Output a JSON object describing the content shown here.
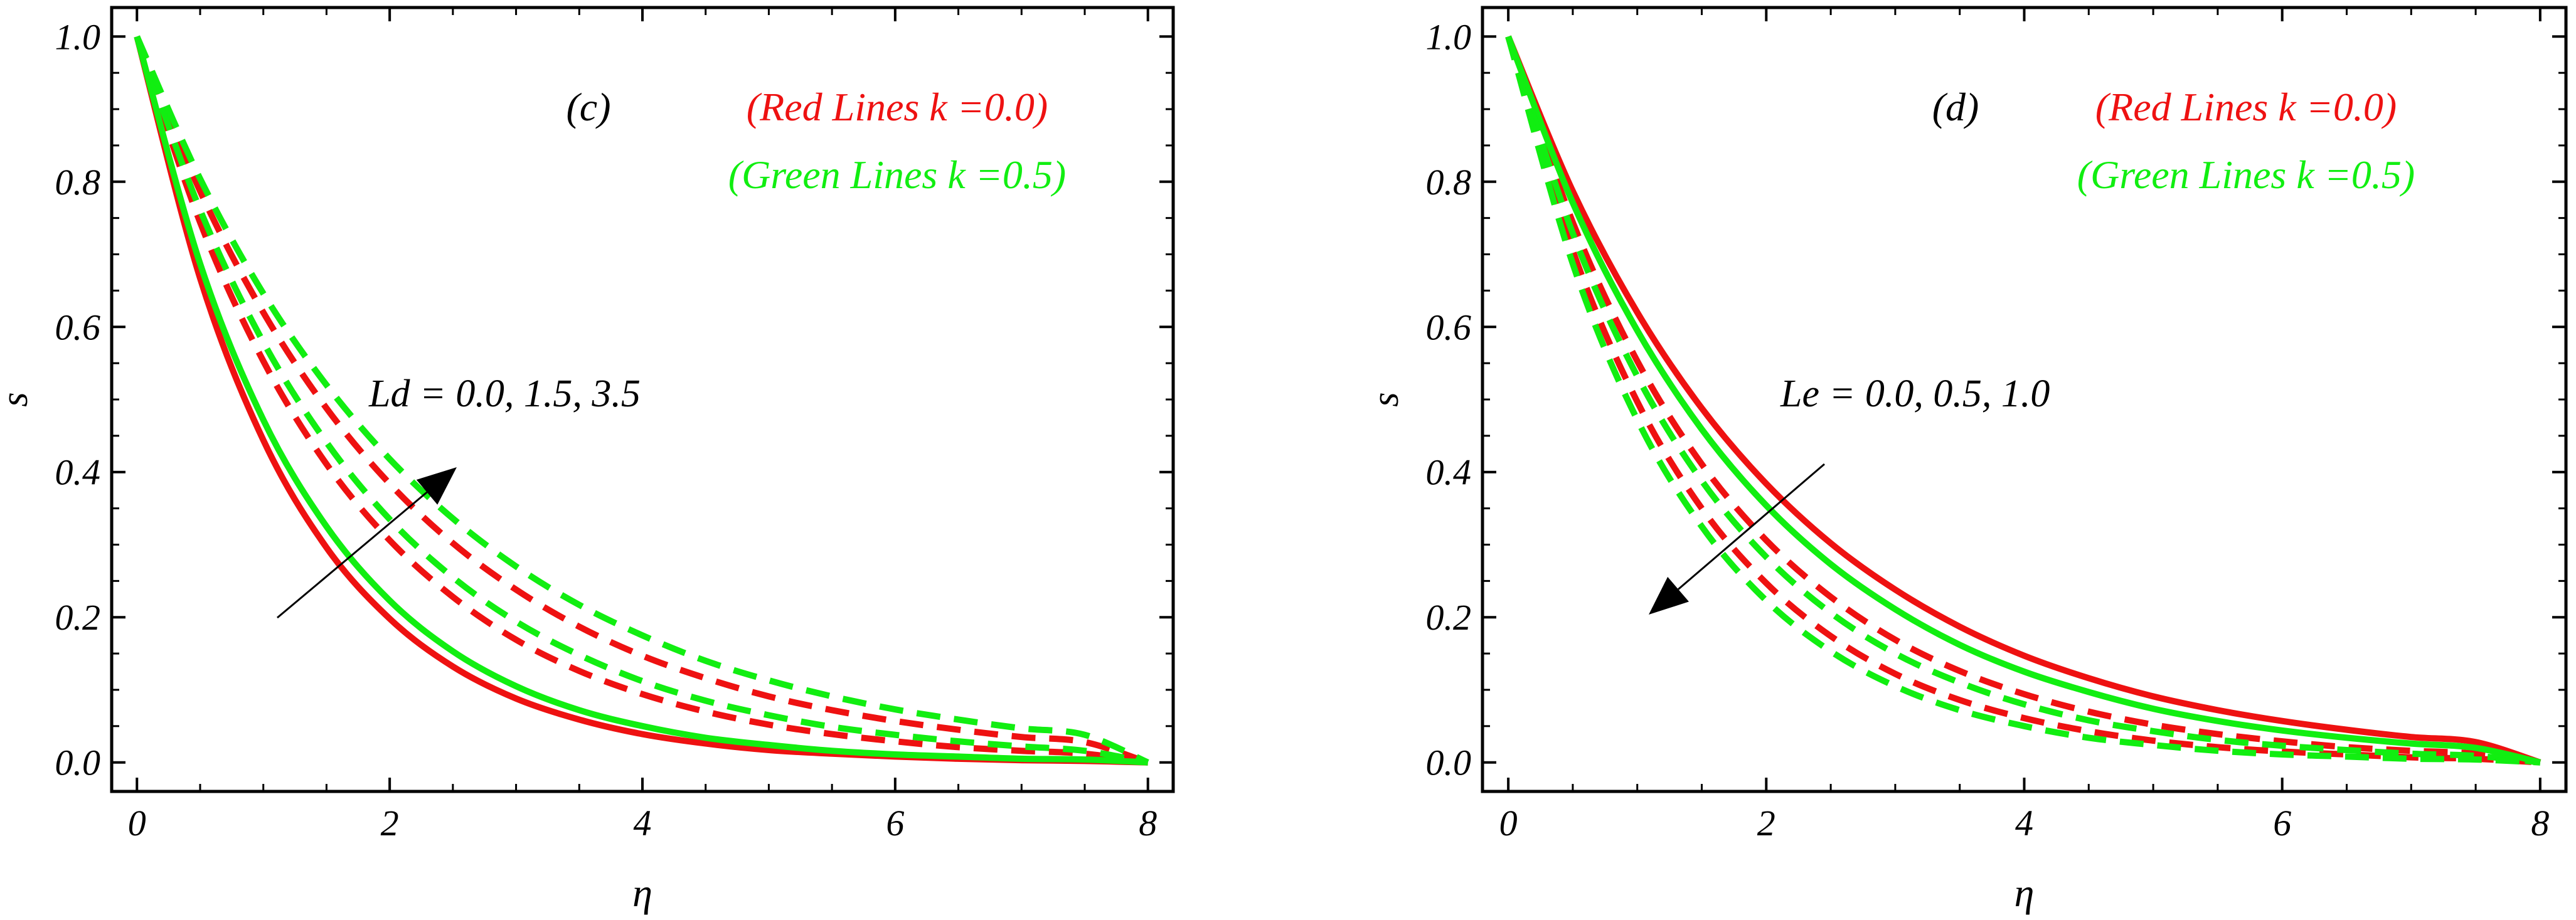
{
  "chart_data": [
    {
      "type": "line",
      "panel_label": "(c)",
      "xlabel": "η",
      "ylabel": "s",
      "xlim": [
        -0.2,
        8.2
      ],
      "ylim": [
        -0.04,
        1.04
      ],
      "xticks": [
        "0",
        "2",
        "4",
        "6",
        "8"
      ],
      "xtick_values": [
        0,
        2,
        4,
        6,
        8
      ],
      "yticks": [
        "0.0",
        "0.2",
        "0.4",
        "0.6",
        "0.8",
        "1.0"
      ],
      "ytick_values": [
        0.0,
        0.2,
        0.4,
        0.6,
        0.8,
        1.0
      ],
      "legend": [
        {
          "text": "(Red Lines k =0.0)",
          "color": "#ee1111"
        },
        {
          "text": "(Green Lines k =0.5)",
          "color": "#11ee11"
        }
      ],
      "annotation": "Ld = 0.0, 1.5, 3.5",
      "arrow_direction": "up-right",
      "x": [
        0,
        0.5,
        1,
        1.5,
        2,
        2.5,
        3,
        3.5,
        4,
        4.5,
        5,
        5.5,
        6,
        6.5,
        7,
        7.5,
        8
      ],
      "series": [
        {
          "color": "#ee1111",
          "style": "solid",
          "values": [
            1.0,
            0.667,
            0.444,
            0.296,
            0.198,
            0.132,
            0.088,
            0.059,
            0.039,
            0.026,
            0.017,
            0.012,
            0.008,
            0.005,
            0.003,
            0.002,
            0.0
          ]
        },
        {
          "color": "#ee1111",
          "style": "dashed",
          "values": [
            1.0,
            0.744,
            0.553,
            0.411,
            0.306,
            0.228,
            0.169,
            0.126,
            0.094,
            0.07,
            0.052,
            0.039,
            0.029,
            0.021,
            0.016,
            0.012,
            0.0
          ]
        },
        {
          "color": "#ee1111",
          "style": "dashed",
          "values": [
            1.0,
            0.787,
            0.62,
            0.488,
            0.384,
            0.302,
            0.238,
            0.187,
            0.147,
            0.116,
            0.091,
            0.072,
            0.057,
            0.045,
            0.035,
            0.028,
            0.0
          ]
        },
        {
          "color": "#11ee11",
          "style": "solid",
          "values": [
            1.0,
            0.687,
            0.472,
            0.325,
            0.223,
            0.153,
            0.105,
            0.072,
            0.05,
            0.034,
            0.024,
            0.016,
            0.011,
            0.008,
            0.005,
            0.004,
            0.0
          ]
        },
        {
          "color": "#11ee11",
          "style": "dashed",
          "values": [
            1.0,
            0.761,
            0.579,
            0.441,
            0.335,
            0.255,
            0.194,
            0.148,
            0.112,
            0.085,
            0.065,
            0.049,
            0.038,
            0.029,
            0.022,
            0.016,
            0.0
          ]
        },
        {
          "color": "#11ee11",
          "style": "dashed",
          "values": [
            1.0,
            0.804,
            0.646,
            0.52,
            0.418,
            0.336,
            0.27,
            0.217,
            0.175,
            0.14,
            0.113,
            0.091,
            0.073,
            0.059,
            0.047,
            0.038,
            0.0
          ]
        }
      ]
    },
    {
      "type": "line",
      "panel_label": "(d)",
      "xlabel": "η",
      "ylabel": "s",
      "xlim": [
        -0.2,
        8.2
      ],
      "ylim": [
        -0.04,
        1.04
      ],
      "xticks": [
        "0",
        "2",
        "4",
        "6",
        "8"
      ],
      "xtick_values": [
        0,
        2,
        4,
        6,
        8
      ],
      "yticks": [
        "0.0",
        "0.2",
        "0.4",
        "0.6",
        "0.8",
        "1.0"
      ],
      "ytick_values": [
        0.0,
        0.2,
        0.4,
        0.6,
        0.8,
        1.0
      ],
      "legend": [
        {
          "text": "(Red Lines k =0.0)",
          "color": "#ee1111"
        },
        {
          "text": "(Green Lines k =0.5)",
          "color": "#11ee11"
        }
      ],
      "annotation": "Le = 0.0, 0.5, 1.0",
      "arrow_direction": "down-left",
      "x": [
        0,
        0.5,
        1,
        1.5,
        2,
        2.5,
        3,
        3.5,
        4,
        4.5,
        5,
        5.5,
        6,
        6.5,
        7,
        7.5,
        8
      ],
      "series": [
        {
          "color": "#ee1111",
          "style": "solid",
          "values": [
            1.0,
            0.787,
            0.62,
            0.488,
            0.384,
            0.302,
            0.238,
            0.187,
            0.147,
            0.116,
            0.091,
            0.072,
            0.057,
            0.045,
            0.035,
            0.028,
            0.0
          ]
        },
        {
          "color": "#ee1111",
          "style": "dashed",
          "values": [
            1.0,
            0.744,
            0.553,
            0.411,
            0.306,
            0.228,
            0.169,
            0.126,
            0.094,
            0.07,
            0.052,
            0.039,
            0.029,
            0.021,
            0.016,
            0.012,
            0.0
          ]
        },
        {
          "color": "#ee1111",
          "style": "dashed",
          "values": [
            1.0,
            0.705,
            0.497,
            0.35,
            0.247,
            0.174,
            0.122,
            0.086,
            0.061,
            0.043,
            0.03,
            0.021,
            0.015,
            0.011,
            0.007,
            0.005,
            0.0
          ]
        },
        {
          "color": "#11ee11",
          "style": "solid",
          "values": [
            1.0,
            0.771,
            0.595,
            0.459,
            0.354,
            0.273,
            0.211,
            0.162,
            0.125,
            0.097,
            0.074,
            0.057,
            0.044,
            0.034,
            0.026,
            0.02,
            0.0
          ]
        },
        {
          "color": "#11ee11",
          "style": "dashed",
          "values": [
            1.0,
            0.729,
            0.532,
            0.388,
            0.283,
            0.206,
            0.15,
            0.11,
            0.08,
            0.058,
            0.043,
            0.031,
            0.023,
            0.017,
            0.012,
            0.009,
            0.0
          ]
        },
        {
          "color": "#11ee11",
          "style": "dashed",
          "values": [
            1.0,
            0.687,
            0.472,
            0.325,
            0.223,
            0.153,
            0.105,
            0.072,
            0.05,
            0.034,
            0.024,
            0.016,
            0.011,
            0.008,
            0.005,
            0.004,
            0.0
          ]
        }
      ]
    }
  ]
}
